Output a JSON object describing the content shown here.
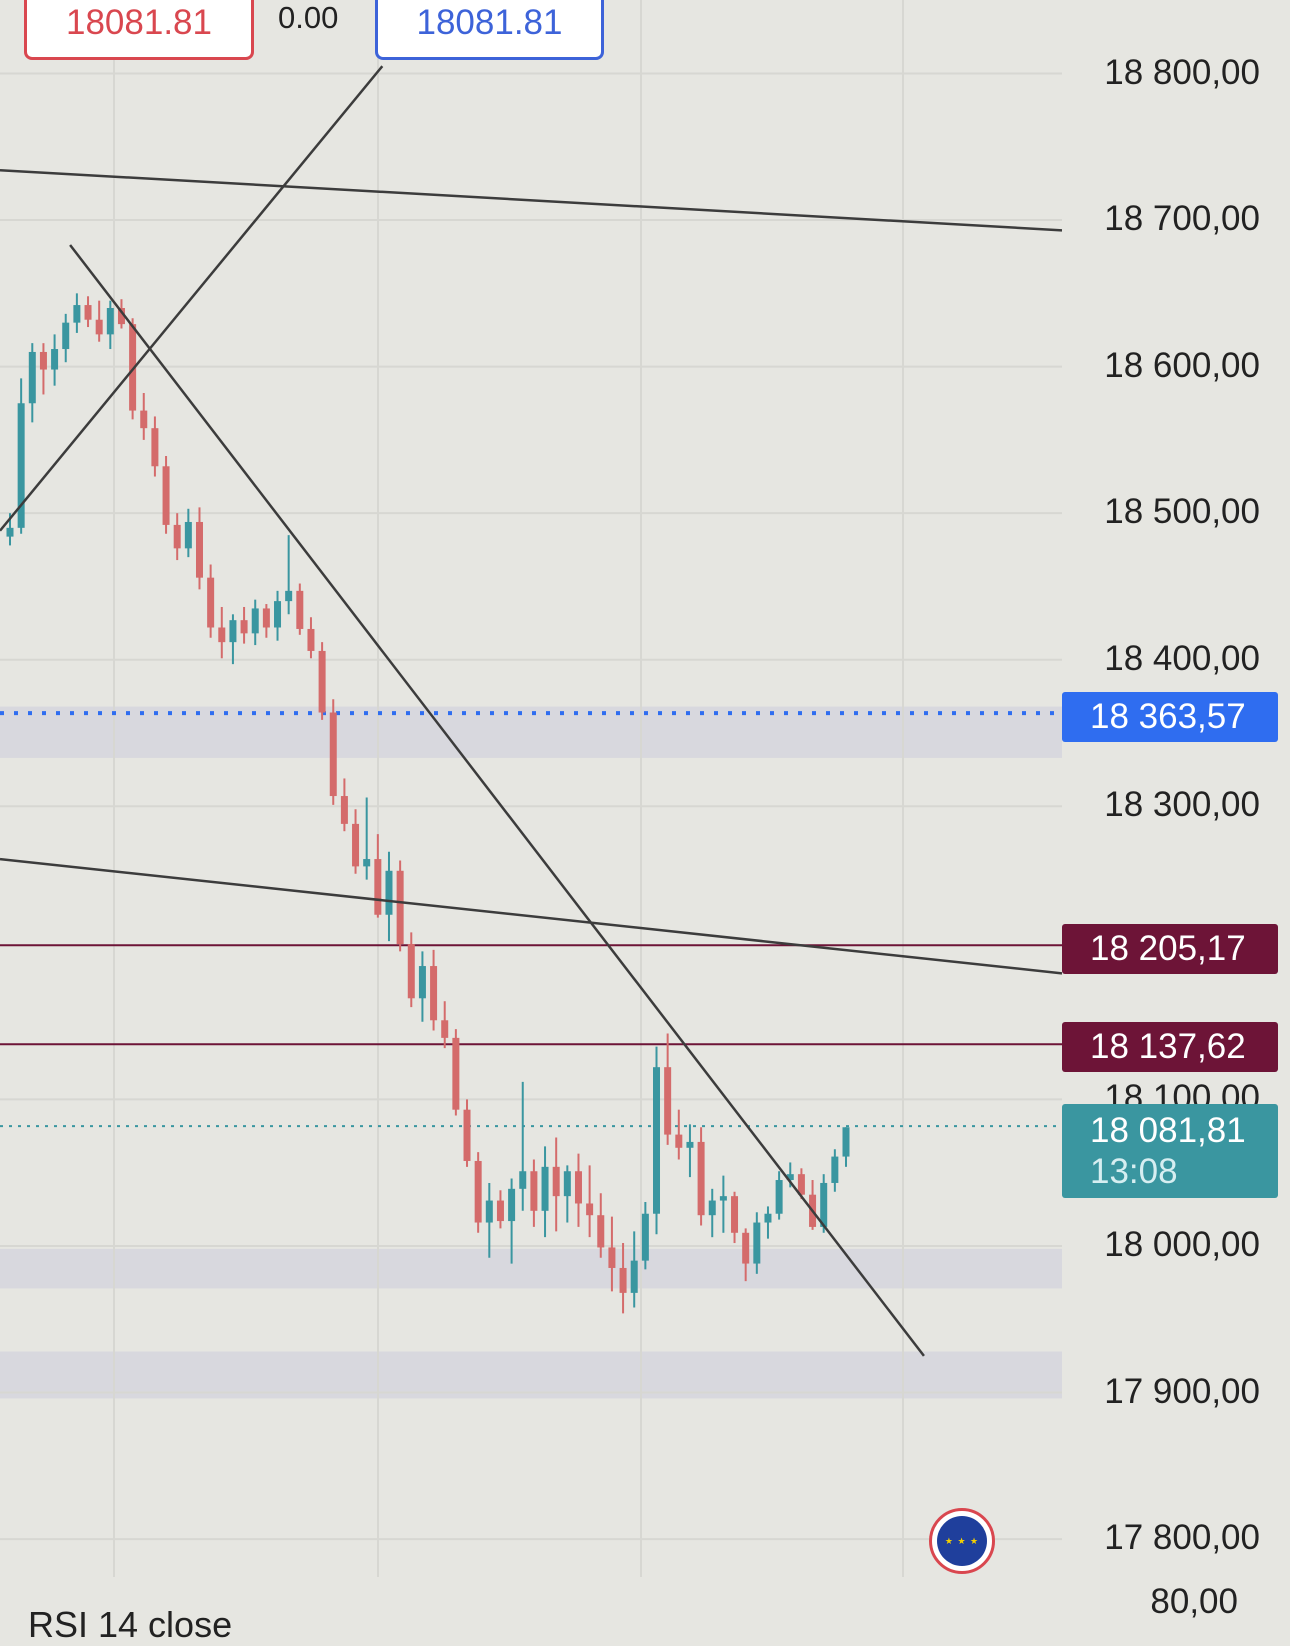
{
  "order_ticket": {
    "sell_price": "18081.81",
    "spread": "0.00",
    "buy_price": "18081.81"
  },
  "price_labels": {
    "alert": "18 363,57",
    "resistance_1": "18 205,17",
    "resistance_2": "18 137,62",
    "last_price": "18 081,81",
    "countdown": "13:08"
  },
  "rsi_pane": {
    "label": "RSI 14 close",
    "top_value": "80,00"
  },
  "colors": {
    "background": "#e6e6e1",
    "grid": "#d7d7d2",
    "up_candle": "#3a96a0",
    "down_candle": "#d46b6b",
    "trendline": "#3c3c3c",
    "zone": "#d8d8de",
    "alert_line": "#2f6df0",
    "resistance_line": "#6d1437",
    "last_price_line": "#3a96a0"
  },
  "icons": {
    "eu_flag": "eu-flag-icon"
  },
  "chart_data": {
    "type": "candlestick",
    "yaxis": {
      "ticks": [
        18800,
        18700,
        18600,
        18500,
        18400,
        18300,
        18100,
        18000,
        17900,
        17800
      ],
      "tick_labels": [
        "18 800,00",
        "18 700,00",
        "18 600,00",
        "18 500,00",
        "18 400,00",
        "18 300,00",
        "18 100,00",
        "18 000,00",
        "17 900,00",
        "17 800,00"
      ],
      "ylim": [
        17775,
        18850
      ],
      "position": "right"
    },
    "grid": true,
    "horizontal_levels": [
      {
        "kind": "alert",
        "value": 18363.57,
        "style": "dotted"
      },
      {
        "kind": "resistance",
        "value": 18205.17,
        "style": "solid"
      },
      {
        "kind": "resistance",
        "value": 18137.62,
        "style": "solid"
      },
      {
        "kind": "last_price",
        "value": 18081.81,
        "style": "dotted"
      }
    ],
    "zones": [
      [
        18333,
        18368
      ],
      [
        17971,
        17998
      ],
      [
        17896,
        17928
      ]
    ],
    "trendlines": [
      [
        [
          0,
          18488
        ],
        [
          0.36,
          18805
        ]
      ],
      [
        [
          0,
          18734
        ],
        [
          1,
          18693
        ]
      ],
      [
        [
          0.066,
          18683
        ],
        [
          0.87,
          17925
        ]
      ],
      [
        [
          0,
          18264
        ],
        [
          1,
          18186
        ]
      ]
    ],
    "candles": [
      [
        18484,
        18500,
        18478,
        18490
      ],
      [
        18490,
        18592,
        18486,
        18575
      ],
      [
        18575,
        18616,
        18562,
        18610
      ],
      [
        18610,
        18616,
        18581,
        18598
      ],
      [
        18598,
        18622,
        18587,
        18612
      ],
      [
        18612,
        18636,
        18603,
        18630
      ],
      [
        18630,
        18650,
        18623,
        18642
      ],
      [
        18642,
        18648,
        18627,
        18632
      ],
      [
        18632,
        18645,
        18617,
        18622
      ],
      [
        18622,
        18645,
        18612,
        18640
      ],
      [
        18640,
        18646,
        18626,
        18629
      ],
      [
        18629,
        18633,
        18564,
        18570
      ],
      [
        18570,
        18582,
        18550,
        18558
      ],
      [
        18558,
        18566,
        18525,
        18532
      ],
      [
        18532,
        18539,
        18486,
        18492
      ],
      [
        18492,
        18500,
        18468,
        18476
      ],
      [
        18476,
        18503,
        18470,
        18494
      ],
      [
        18494,
        18504,
        18448,
        18456
      ],
      [
        18456,
        18465,
        18415,
        18422
      ],
      [
        18422,
        18436,
        18401,
        18412
      ],
      [
        18412,
        18431,
        18397,
        18427
      ],
      [
        18427,
        18436,
        18411,
        18418
      ],
      [
        18418,
        18441,
        18410,
        18435
      ],
      [
        18435,
        18438,
        18415,
        18422
      ],
      [
        18422,
        18447,
        18413,
        18440
      ],
      [
        18440,
        18485,
        18431,
        18447
      ],
      [
        18447,
        18452,
        18417,
        18421
      ],
      [
        18421,
        18429,
        18401,
        18406
      ],
      [
        18406,
        18412,
        18359,
        18364
      ],
      [
        18364,
        18373,
        18301,
        18307
      ],
      [
        18307,
        18319,
        18283,
        18288
      ],
      [
        18288,
        18298,
        18254,
        18259
      ],
      [
        18259,
        18306,
        18250,
        18264
      ],
      [
        18264,
        18281,
        18224,
        18226
      ],
      [
        18226,
        18269,
        18208,
        18256
      ],
      [
        18256,
        18263,
        18201,
        18206
      ],
      [
        18206,
        18214,
        18163,
        18169
      ],
      [
        18169,
        18201,
        18153,
        18191
      ],
      [
        18191,
        18202,
        18147,
        18154
      ],
      [
        18154,
        18167,
        18135,
        18142
      ],
      [
        18142,
        18148,
        18089,
        18093
      ],
      [
        18093,
        18100,
        18054,
        18058
      ],
      [
        18058,
        18064,
        18009,
        18016
      ],
      [
        18016,
        18043,
        17992,
        18031
      ],
      [
        18031,
        18038,
        18012,
        18017
      ],
      [
        18017,
        18046,
        17988,
        18039
      ],
      [
        18039,
        18112,
        18024,
        18051
      ],
      [
        18051,
        18059,
        18013,
        18024
      ],
      [
        18024,
        18068,
        18006,
        18054
      ],
      [
        18054,
        18074,
        18010,
        18034
      ],
      [
        18034,
        18055,
        18016,
        18051
      ],
      [
        18051,
        18063,
        18013,
        18029
      ],
      [
        18029,
        18055,
        18006,
        18021
      ],
      [
        18021,
        18036,
        17992,
        17999
      ],
      [
        17999,
        18020,
        17969,
        17985
      ],
      [
        17985,
        18002,
        17954,
        17968
      ],
      [
        17968,
        18010,
        17958,
        17990
      ],
      [
        17990,
        18030,
        17984,
        18022
      ],
      [
        18022,
        18136,
        18008,
        18122
      ],
      [
        18122,
        18145,
        18069,
        18076
      ],
      [
        18076,
        18093,
        18059,
        18067
      ],
      [
        18067,
        18083,
        18047,
        18071
      ],
      [
        18071,
        18081,
        18014,
        18021
      ],
      [
        18021,
        18039,
        18006,
        18031
      ],
      [
        18031,
        18048,
        18009,
        18034
      ],
      [
        18034,
        18037,
        18002,
        18009
      ],
      [
        18009,
        18012,
        17976,
        17988
      ],
      [
        17988,
        18023,
        17981,
        18016
      ],
      [
        18016,
        18027,
        18005,
        18022
      ],
      [
        18022,
        18051,
        18018,
        18045
      ],
      [
        18045,
        18057,
        18040,
        18049
      ],
      [
        18049,
        18053,
        18032,
        18035
      ],
      [
        18035,
        18045,
        18011,
        18013
      ],
      [
        18013,
        18049,
        18009,
        18043
      ],
      [
        18043,
        18066,
        18037,
        18061
      ],
      [
        18061,
        18081,
        18054,
        18081
      ]
    ]
  }
}
